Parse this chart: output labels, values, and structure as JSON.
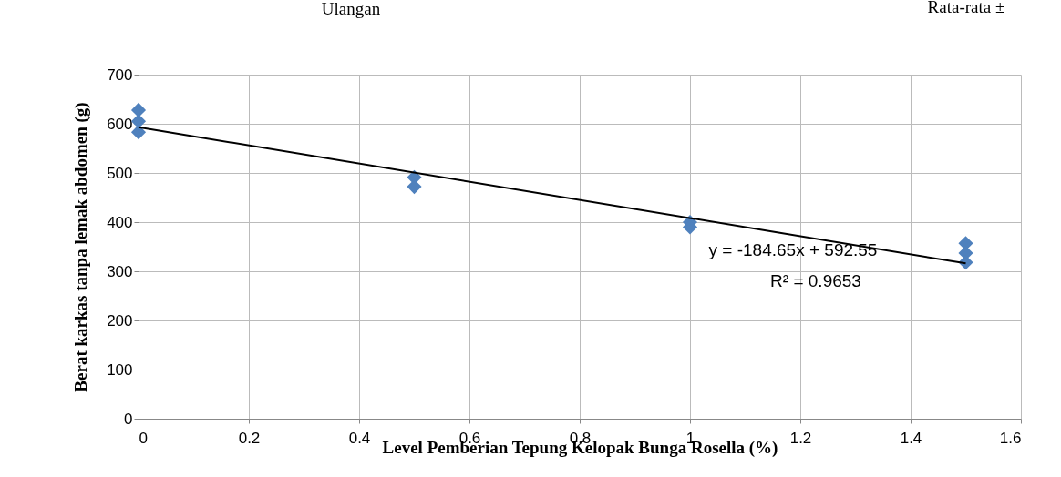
{
  "chart_data": {
    "type": "scatter",
    "xlabel": "Level Pemberian Tepung Kelopak Bunga Rosella (%)",
    "ylabel": "Berat karkas tanpa lemak abdomen (g)",
    "series": [
      {
        "color": "#4f81bd",
        "marker": "diamond",
        "x": [
          0,
          0,
          0,
          0.5,
          0.5,
          1,
          1,
          1.5,
          1.5,
          1.5
        ],
        "values": [
          628,
          605,
          583,
          491,
          472,
          400,
          390,
          357,
          337,
          318
        ]
      },
      {
        "type": "line",
        "color": "#000000",
        "x": [
          0,
          1.5
        ],
        "values": [
          593,
          316
        ]
      }
    ],
    "xlim": [
      0,
      1.6
    ],
    "xticks": [
      0,
      0.2,
      0.4,
      0.6,
      0.8,
      1,
      1.2,
      1.4,
      1.6
    ],
    "ylim": [
      0,
      700
    ],
    "yticks": [
      0,
      100,
      200,
      300,
      400,
      500,
      600,
      700
    ],
    "grid": true,
    "annotations": [
      "y = -184.65x + 592.55",
      "R² = 0.9653",
      "Ulangan",
      "Rata-rata ±"
    ]
  }
}
